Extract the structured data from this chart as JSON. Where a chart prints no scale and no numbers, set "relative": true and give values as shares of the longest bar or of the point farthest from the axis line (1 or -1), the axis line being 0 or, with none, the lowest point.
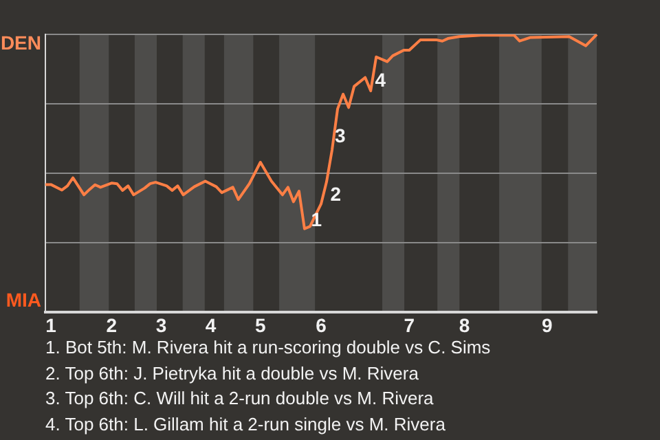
{
  "chart_data": {
    "type": "line",
    "relative": true,
    "categories": [
      null,
      "1",
      null,
      null,
      null,
      null,
      null,
      null,
      null,
      null,
      null,
      null,
      "2",
      null,
      null,
      null,
      null,
      null,
      null,
      null,
      null,
      "3",
      null,
      null,
      null,
      null,
      null,
      null,
      null,
      null,
      "4",
      null,
      null,
      null,
      null,
      null,
      null,
      null,
      null,
      "5",
      null,
      null,
      null,
      null,
      null,
      null,
      null,
      null,
      null,
      null,
      "6",
      null,
      null,
      null,
      null,
      null,
      null,
      null,
      null,
      null,
      null,
      null,
      null,
      null,
      null,
      null,
      "7",
      null,
      null,
      null,
      null,
      null,
      null,
      null,
      null,
      null,
      "8",
      null,
      null,
      null,
      null,
      null,
      null,
      null,
      null,
      null,
      null,
      null,
      null,
      null,
      null,
      "9",
      null,
      null,
      null,
      null,
      null,
      null,
      null,
      null,
      null
    ],
    "series": [
      {
        "color": "#ff7f45",
        "values": [
          0.46,
          0.46,
          null,
          0.44,
          0.455,
          0.484,
          null,
          0.423,
          0.442,
          0.459,
          0.45,
          null,
          0.465,
          0.463,
          0.439,
          0.455,
          0.423,
          null,
          0.447,
          0.463,
          0.468,
          null,
          0.455,
          0.439,
          0.455,
          0.423,
          null,
          0.452,
          null,
          0.472,
          null,
          0.452,
          0.431,
          null,
          0.45,
          0.406,
          null,
          0.463,
          null,
          0.54,
          null,
          0.472,
          null,
          0.423,
          0.45,
          0.398,
          0.436,
          0.301,
          0.309,
          0.35,
          0.39,
          0.47,
          0.585,
          0.732,
          0.785,
          0.737,
          0.813,
          null,
          0.845,
          0.797,
          0.919,
          null,
          0.902,
          0.923,
          null,
          0.943,
          0.943,
          null,
          0.98,
          null,
          null,
          0.98,
          0.976,
          0.985,
          null,
          0.992,
          null,
          null,
          null,
          0.997,
          null,
          null,
          null,
          null,
          null,
          0.997,
          0.976,
          null,
          0.989,
          null,
          null,
          null,
          null,
          null,
          null,
          0.992,
          null,
          null,
          0.959,
          null,
          1.0
        ]
      }
    ],
    "grid": "y",
    "marker": "none",
    "line_style": "solid",
    "legend": false,
    "annotations": [
      "DEN",
      "MIA",
      "1",
      "2",
      "3",
      "4",
      "1. Bot 5th: M. Rivera hit a run-scoring double vs C. Sims",
      "2. Top 6th: J. Pietryka hit a double vs M. Rivera",
      "3. Top 6th: C. Will hit a 2-run double vs M. Rivera",
      "4. Top 6th: L. Gillam hit a 2-run single vs M. Rivera"
    ]
  }
}
